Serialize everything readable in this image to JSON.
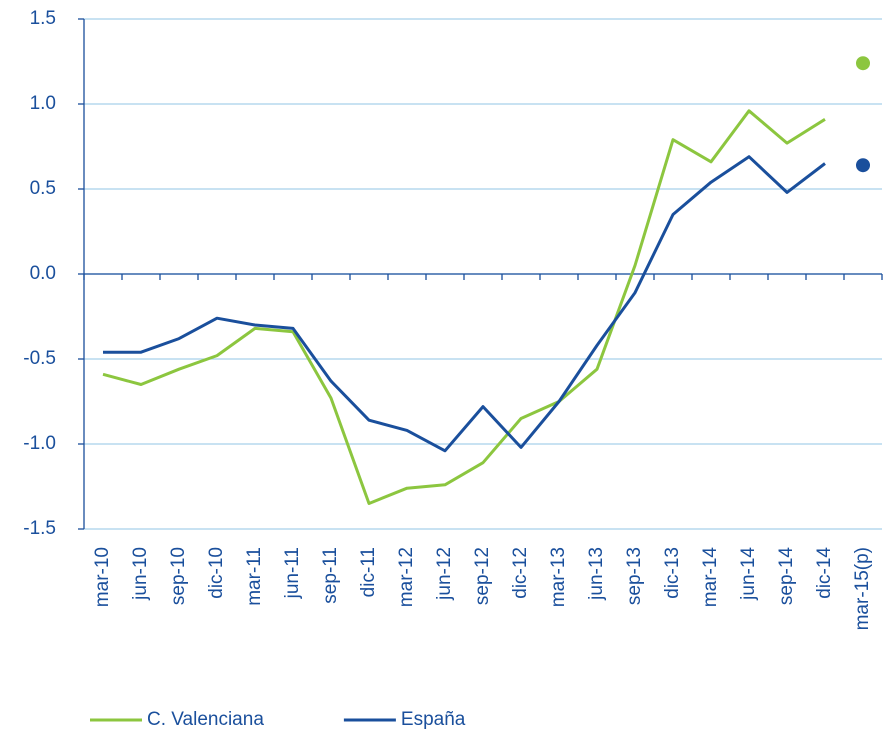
{
  "chart_data": {
    "type": "line",
    "categories": [
      "mar-10",
      "jun-10",
      "sep-10",
      "dic-10",
      "mar-11",
      "jun-11",
      "sep-11",
      "dic-11",
      "mar-12",
      "jun-12",
      "sep-12",
      "dic-12",
      "mar-13",
      "jun-13",
      "sep-13",
      "dic-13",
      "mar-14",
      "jun-14",
      "sep-14",
      "dic-14",
      "mar-15(p)"
    ],
    "series": [
      {
        "name": "C. Valenciana",
        "color": "#8cc63f",
        "values": [
          -0.59,
          -0.65,
          -0.56,
          -0.48,
          -0.32,
          -0.34,
          -0.73,
          -1.35,
          -1.26,
          -1.24,
          -1.11,
          -0.85,
          -0.75,
          -0.56,
          0.05,
          0.79,
          0.66,
          0.96,
          0.77,
          0.91,
          null
        ],
        "projection": [
          null,
          null,
          null,
          null,
          null,
          null,
          null,
          null,
          null,
          null,
          null,
          null,
          null,
          null,
          null,
          null,
          null,
          null,
          null,
          null,
          1.24
        ]
      },
      {
        "name": "España",
        "color": "#1a4f9c",
        "values": [
          -0.46,
          -0.46,
          -0.38,
          -0.26,
          -0.3,
          -0.32,
          -0.63,
          -0.86,
          -0.92,
          -1.04,
          -0.78,
          -1.02,
          -0.75,
          -0.42,
          -0.11,
          0.35,
          0.54,
          0.69,
          0.48,
          0.65,
          null
        ],
        "projection": [
          null,
          null,
          null,
          null,
          null,
          null,
          null,
          null,
          null,
          null,
          null,
          null,
          null,
          null,
          null,
          null,
          null,
          null,
          null,
          null,
          0.64
        ]
      }
    ],
    "ylim": [
      -1.5,
      1.5
    ],
    "yticks": [
      -1.5,
      {
        "value": -1.0,
        "label": "-1.0"
      },
      -0.5,
      {
        "value": 0.0,
        "label": "0.0"
      },
      0.5,
      {
        "value": 1.0,
        "label": "1.0"
      },
      1.5
    ],
    "grid": true,
    "legend": "bottom"
  }
}
